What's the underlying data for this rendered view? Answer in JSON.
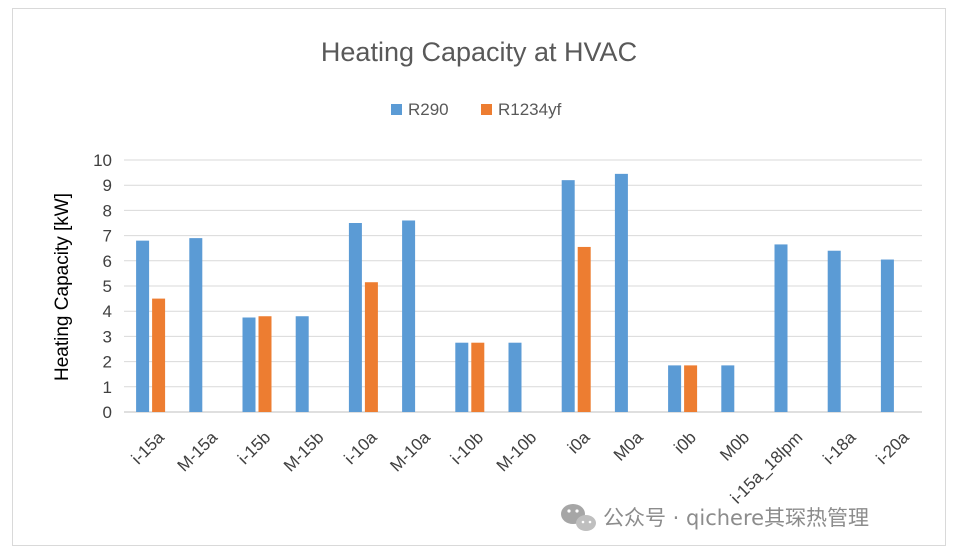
{
  "chart_data": {
    "type": "bar",
    "title": "Heating Capacity at HVAC",
    "ylabel": "Heating Capacity [kW]",
    "xlabel": "",
    "ylim": [
      0,
      10
    ],
    "yticks": [
      0,
      1,
      2,
      3,
      4,
      5,
      6,
      7,
      8,
      9,
      10
    ],
    "grid": true,
    "legend_position": "top-center",
    "categories": [
      "i-15a",
      "M-15a",
      "i-15b",
      "M-15b",
      "i-10a",
      "M-10a",
      "i-10b",
      "M-10b",
      "i0a",
      "M0a",
      "i0b",
      "M0b",
      "i-15a_18lpm",
      "i-18a",
      "i-20a"
    ],
    "series": [
      {
        "name": "R290",
        "color": "#5b9bd5",
        "values": [
          6.8,
          6.9,
          3.75,
          3.8,
          7.5,
          7.6,
          2.75,
          2.75,
          9.2,
          9.45,
          1.85,
          1.85,
          6.65,
          6.4,
          6.05
        ]
      },
      {
        "name": "R1234yf",
        "color": "#ed7d31",
        "values": [
          4.5,
          null,
          3.8,
          null,
          5.15,
          null,
          2.75,
          null,
          6.55,
          null,
          1.85,
          null,
          null,
          null,
          null
        ]
      }
    ]
  },
  "watermark": {
    "icon": "wechat-icon",
    "text": "公众号 · qichere其琛热管理"
  }
}
